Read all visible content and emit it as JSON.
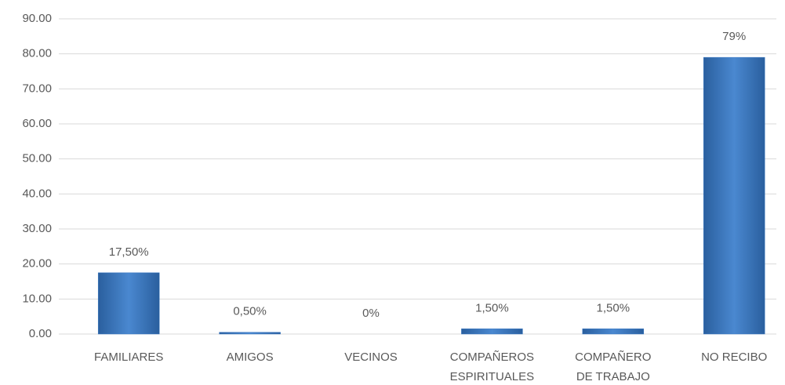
{
  "chart_data": {
    "type": "bar",
    "categories": [
      "FAMILIARES",
      "AMIGOS",
      "VECINOS",
      "COMPAÑEROS\nESPIRITUALES",
      "COMPAÑERO\nDE TRABAJO",
      "NO RECIBO"
    ],
    "values": [
      17.5,
      0.5,
      0,
      1.5,
      1.5,
      79
    ],
    "value_labels": [
      "17,50%",
      "0,50%",
      "0%",
      "1,50%",
      "1,50%",
      "79%"
    ],
    "color": "#3a78c4",
    "ylim": [
      0,
      90
    ],
    "yticks": [
      {
        "value": 0,
        "label": "0.00"
      },
      {
        "value": 10,
        "label": "10.00"
      },
      {
        "value": 20,
        "label": "20.00"
      },
      {
        "value": 30,
        "label": "30.00"
      },
      {
        "value": 40,
        "label": "40.00"
      },
      {
        "value": 50,
        "label": "50.00"
      },
      {
        "value": 60,
        "label": "60.00"
      },
      {
        "value": 70,
        "label": "70.00"
      },
      {
        "value": 80,
        "label": "80.00"
      },
      {
        "value": 90,
        "label": "90.00"
      }
    ],
    "grid": true
  }
}
